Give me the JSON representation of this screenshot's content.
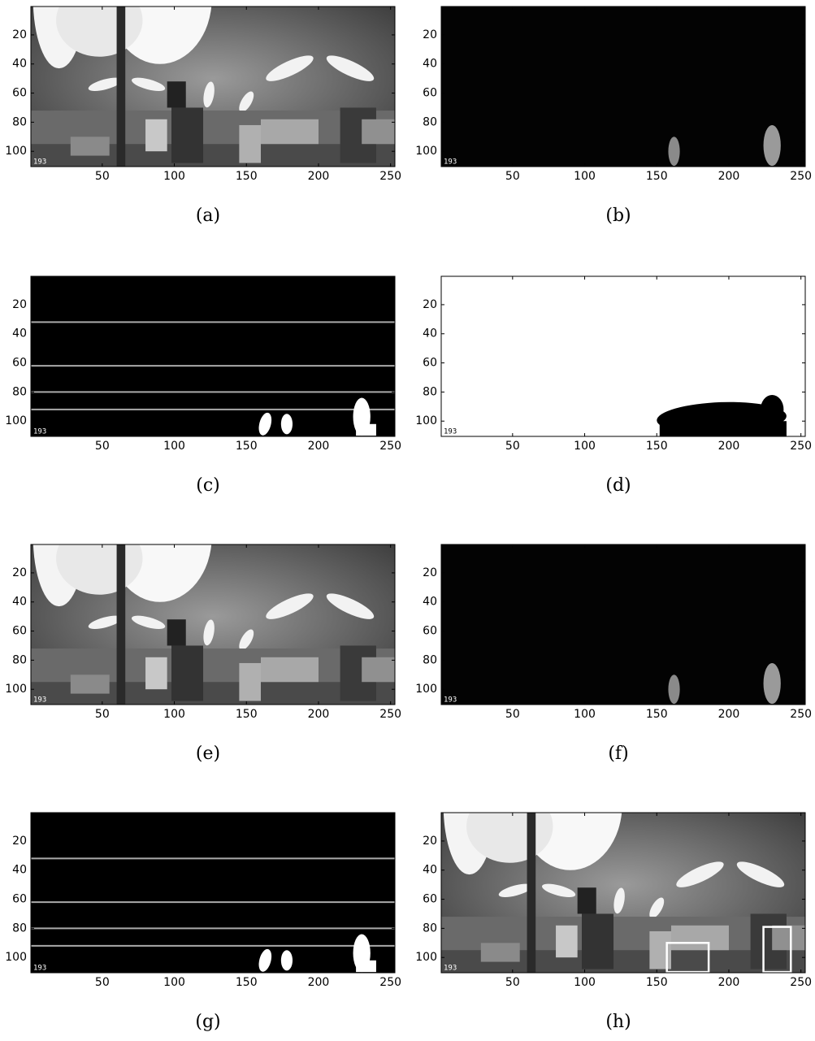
{
  "chart_data": [
    {
      "type": "image",
      "style": "photo",
      "caption": "(a)",
      "frame_label": "193",
      "xlim": [
        0.5,
        253
      ],
      "ylim": [
        0.5,
        110.5
      ],
      "y_reversed": true,
      "xticks": [
        50,
        100,
        150,
        200,
        250
      ],
      "yticks": [
        20,
        40,
        60,
        80,
        100
      ]
    },
    {
      "type": "image",
      "style": "dark",
      "caption": "(b)",
      "frame_label": "193",
      "xlim": [
        0.5,
        253
      ],
      "ylim": [
        0.5,
        110.5
      ],
      "y_reversed": true,
      "xticks": [
        50,
        100,
        150,
        200,
        250
      ],
      "yticks": [
        20,
        40,
        60,
        80,
        100
      ]
    },
    {
      "type": "image",
      "style": "binary",
      "caption": "(c)",
      "frame_label": "193",
      "xlim": [
        0.5,
        253
      ],
      "ylim": [
        0.5,
        110.5
      ],
      "y_reversed": true,
      "xticks": [
        50,
        100,
        150,
        200,
        250
      ],
      "yticks": [
        20,
        40,
        60,
        80,
        100
      ],
      "hlines": [
        32,
        62,
        80,
        92
      ]
    },
    {
      "type": "image",
      "style": "mask",
      "caption": "(d)",
      "frame_label": "193",
      "xlim": [
        0.5,
        253
      ],
      "ylim": [
        0.5,
        110.5
      ],
      "y_reversed": true,
      "xticks": [
        50,
        100,
        150,
        200,
        250
      ],
      "yticks": [
        20,
        40,
        60,
        80,
        100
      ]
    },
    {
      "type": "image",
      "style": "photo",
      "caption": "(e)",
      "frame_label": "193",
      "xlim": [
        0.5,
        253
      ],
      "ylim": [
        0.5,
        110.5
      ],
      "y_reversed": true,
      "xticks": [
        50,
        100,
        150,
        200,
        250
      ],
      "yticks": [
        20,
        40,
        60,
        80,
        100
      ]
    },
    {
      "type": "image",
      "style": "dark",
      "caption": "(f)",
      "frame_label": "193",
      "xlim": [
        0.5,
        253
      ],
      "ylim": [
        0.5,
        110.5
      ],
      "y_reversed": true,
      "xticks": [
        50,
        100,
        150,
        200,
        250
      ],
      "yticks": [
        20,
        40,
        60,
        80,
        100
      ]
    },
    {
      "type": "image",
      "style": "binary",
      "caption": "(g)",
      "frame_label": "193",
      "xlim": [
        0.5,
        253
      ],
      "ylim": [
        0.5,
        110.5
      ],
      "y_reversed": true,
      "xticks": [
        50,
        100,
        150,
        200,
        250
      ],
      "yticks": [
        20,
        40,
        60,
        80,
        100
      ],
      "hlines": [
        32,
        62,
        80,
        92
      ]
    },
    {
      "type": "image",
      "style": "photo",
      "caption": "(h)",
      "frame_label": "193",
      "xlim": [
        0.5,
        253
      ],
      "ylim": [
        0.5,
        110.5
      ],
      "y_reversed": true,
      "xticks": [
        50,
        100,
        150,
        200,
        250
      ],
      "yticks": [
        20,
        40,
        60,
        80,
        100
      ],
      "boxes": [
        [
          157,
          90,
          186,
          110
        ],
        [
          224,
          79,
          243,
          110
        ]
      ]
    }
  ]
}
